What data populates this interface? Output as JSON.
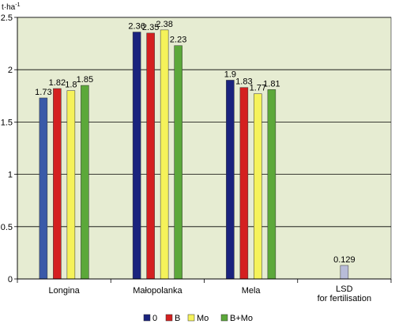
{
  "chart_data": {
    "type": "bar",
    "ylabel": "t·ha",
    "ylabel_sup": "-1",
    "ylim": [
      0,
      2.5
    ],
    "yticks": [
      "0",
      "0.5",
      "1",
      "1.5",
      "2",
      "2.5"
    ],
    "ytick_values": [
      0,
      0.5,
      1,
      1.5,
      2,
      2.5
    ],
    "plot_background": "#e6ecd2",
    "grid": true,
    "legend_position": "bottom",
    "categories": [
      "Longina",
      "Małopolanka",
      "Mela"
    ],
    "extra_category": [
      "LSD",
      "for fertilisation"
    ],
    "series": [
      {
        "name": "0",
        "color": "#1a237e",
        "values": [
          1.73,
          2.36,
          1.9
        ],
        "labels": [
          "1.73",
          "2.36",
          "1.9"
        ]
      },
      {
        "name": "B",
        "color": "#d42020",
        "values": [
          1.82,
          2.35,
          1.83
        ],
        "labels": [
          "1.82",
          "2.35",
          "1.83"
        ]
      },
      {
        "name": "Mo",
        "color": "#f5f25a",
        "values": [
          1.8,
          2.38,
          1.77
        ],
        "labels": [
          "1.8",
          "2.38",
          "1.77"
        ]
      },
      {
        "name": "B+Mo",
        "color": "#5ca83a",
        "values": [
          1.85,
          2.23,
          1.81
        ],
        "labels": [
          "1.85",
          "2.23",
          "1.81"
        ]
      }
    ],
    "first_group_first_color": "#3a5aa8",
    "lsd": {
      "value": 0.129,
      "label": "0.129",
      "color": "#b8bcd8"
    }
  }
}
